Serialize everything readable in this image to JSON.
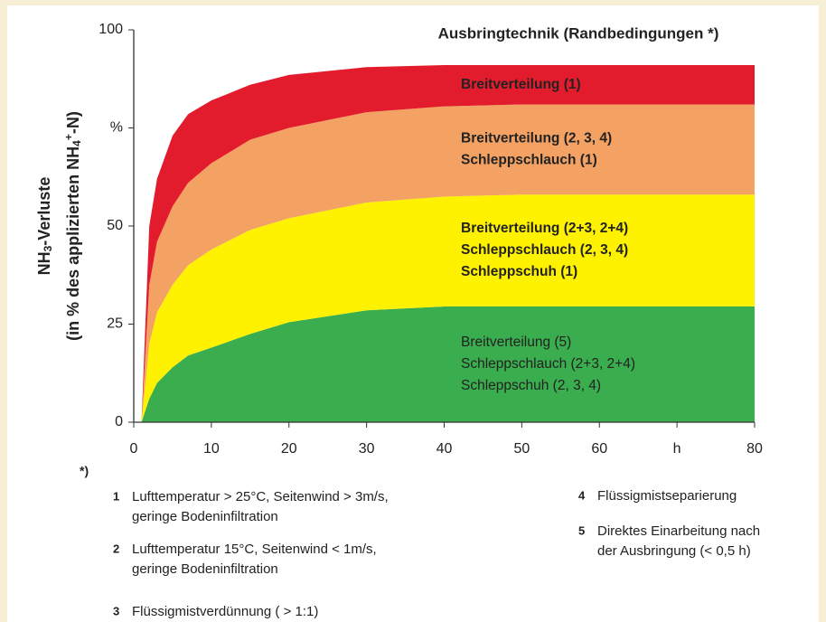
{
  "chart_data": {
    "type": "stacked_area",
    "title": "Ausbringtechnik (Randbedingungen *)",
    "ylabel": [
      [
        "NH",
        "3",
        "-Verluste"
      ],
      [
        "(in % des applizierten NH",
        "4",
        "+",
        "-N)"
      ]
    ],
    "x": [
      1,
      2,
      3,
      5,
      7,
      10,
      15,
      20,
      30,
      40,
      50,
      60,
      70,
      80
    ],
    "xlim": [
      0,
      80
    ],
    "xticks": [
      0,
      10,
      20,
      30,
      40,
      50,
      60,
      {
        "value": 70,
        "label": "h"
      },
      80
    ],
    "ylim": [
      0,
      100
    ],
    "yticks": [
      0,
      25,
      50,
      {
        "value": 75,
        "label": "%"
      },
      100
    ],
    "series": [
      {
        "name": [
          "Breitverteilung (5)",
          "Schleppschlauch (2+3, 2+4)",
          "Schleppschuh (2, 3, 4)"
        ],
        "color": "#3aad4e",
        "bold": false,
        "values": [
          0,
          6,
          10,
          14,
          17,
          19,
          22.5,
          25.5,
          28.5,
          29.5,
          29.5,
          29.5,
          29.5,
          29.5
        ]
      },
      {
        "name": [
          "Breitverteilung (2+3, 2+4)",
          "Schleppschlauch (2, 3, 4)",
          "Schleppschuh (1)"
        ],
        "color": "#fff200",
        "bold": true,
        "values": [
          0,
          14,
          18,
          21,
          23,
          25,
          26.5,
          26.5,
          27.5,
          28,
          28.5,
          28.5,
          28.5,
          28.5
        ]
      },
      {
        "name": [
          "Breitverteilung (2, 3, 4)",
          "Schleppschlauch (1)"
        ],
        "color": "#f3a263",
        "bold": true,
        "values": [
          0,
          15,
          18,
          20,
          21,
          22,
          23,
          23,
          23,
          23,
          23,
          23,
          23,
          23
        ]
      },
      {
        "name": [
          "Breitverteilung (1)"
        ],
        "color": "#e31c2d",
        "bold": true,
        "values": [
          0,
          15,
          16,
          18,
          17.5,
          16,
          14,
          13.5,
          11.5,
          10.5,
          10,
          10,
          10,
          10
        ]
      }
    ]
  },
  "notes": {
    "marker": "*)",
    "items": [
      {
        "number": "1",
        "lines": [
          "Lufttemperatur > 25°C, Seitenwind > 3m/s,",
          "geringe Bodeninfiltration"
        ]
      },
      {
        "number": "2",
        "lines": [
          "Lufttemperatur 15°C, Seitenwind < 1m/s,",
          "geringe Bodeninfiltration"
        ]
      },
      {
        "number": "3",
        "lines": [
          "Flüssigmistverdünnung ( > 1:1)"
        ]
      },
      {
        "number": "4",
        "lines": [
          "Flüssigmistseparierung"
        ]
      },
      {
        "number": "5",
        "lines": [
          "Direktes Einarbeitung nach",
          "der Ausbringung (< 0,5 h)"
        ]
      }
    ]
  }
}
